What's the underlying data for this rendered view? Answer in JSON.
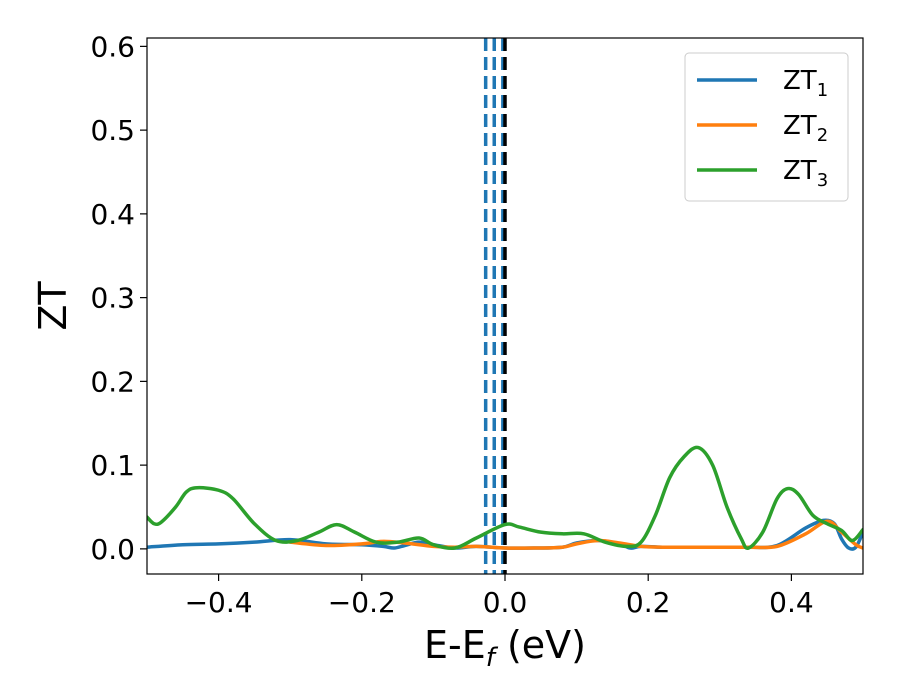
{
  "chart_data": {
    "type": "line",
    "xlabel": "E-E",
    "xlabel_sub": "f",
    "xlabel_unit": " (eV)",
    "ylabel": "ZT",
    "xlim": [
      -0.5,
      0.5
    ],
    "ylim": [
      -0.03,
      0.61
    ],
    "xticks": [
      -0.4,
      -0.2,
      0.0,
      0.2,
      0.4
    ],
    "xtick_labels": [
      "−0.4",
      "−0.2",
      "0.0",
      "0.2",
      "0.4"
    ],
    "yticks": [
      0.0,
      0.1,
      0.2,
      0.3,
      0.4,
      0.5,
      0.6
    ],
    "ytick_labels": [
      "0.0",
      "0.1",
      "0.2",
      "0.3",
      "0.4",
      "0.5",
      "0.6"
    ],
    "grid": false,
    "legend_position": "top-right",
    "vlines": [
      {
        "x": -0.027,
        "color": "#1f77b4",
        "style": "dashed"
      },
      {
        "x": -0.015,
        "color": "#1f77b4",
        "style": "dashed"
      },
      {
        "x": -0.003,
        "color": "#1f77b4",
        "style": "dashed"
      },
      {
        "x": 0.0,
        "color": "#000000",
        "style": "dashed"
      }
    ],
    "series": [
      {
        "name": "ZT",
        "name_sub": "1",
        "color": "#1f77b4",
        "x": [
          -0.5,
          -0.45,
          -0.4,
          -0.35,
          -0.3,
          -0.25,
          -0.2,
          -0.17,
          -0.155,
          -0.14,
          -0.12,
          -0.1,
          -0.07,
          -0.04,
          0.0,
          0.04,
          0.08,
          0.1,
          0.13,
          0.16,
          0.175,
          0.19,
          0.22,
          0.26,
          0.3,
          0.34,
          0.38,
          0.42,
          0.445,
          0.46,
          0.47,
          0.48,
          0.49,
          0.5
        ],
        "y": [
          0.002,
          0.005,
          0.006,
          0.008,
          0.011,
          0.006,
          0.005,
          0.003,
          0.001,
          0.004,
          0.008,
          0.005,
          0.001,
          0.003,
          0.001,
          0.001,
          0.002,
          0.007,
          0.01,
          0.006,
          0.001,
          0.003,
          0.002,
          0.002,
          0.002,
          0.002,
          0.004,
          0.025,
          0.034,
          0.03,
          0.012,
          0.001,
          0.002,
          0.02
        ]
      },
      {
        "name": "ZT",
        "name_sub": "2",
        "color": "#ff7f0e",
        "x": [
          -0.3,
          -0.25,
          -0.2,
          -0.17,
          -0.14,
          -0.1,
          -0.07,
          -0.04,
          0.0,
          0.04,
          0.08,
          0.1,
          0.13,
          0.16,
          0.19,
          0.22,
          0.26,
          0.3,
          0.34,
          0.38,
          0.42,
          0.45,
          0.47,
          0.49,
          0.5
        ],
        "y": [
          0.008,
          0.004,
          0.006,
          0.009,
          0.007,
          0.003,
          0.002,
          0.003,
          0.001,
          0.001,
          0.002,
          0.006,
          0.01,
          0.007,
          0.003,
          0.002,
          0.002,
          0.002,
          0.002,
          0.003,
          0.018,
          0.033,
          0.02,
          0.005,
          0.001
        ]
      },
      {
        "name": "ZT",
        "name_sub": "3",
        "color": "#2ca02c",
        "x": [
          -0.5,
          -0.49,
          -0.48,
          -0.46,
          -0.445,
          -0.43,
          -0.4,
          -0.38,
          -0.35,
          -0.32,
          -0.29,
          -0.26,
          -0.235,
          -0.21,
          -0.18,
          -0.15,
          -0.12,
          -0.1,
          -0.07,
          -0.04,
          0.0,
          0.02,
          0.05,
          0.08,
          0.11,
          0.14,
          0.17,
          0.19,
          0.21,
          0.23,
          0.25,
          0.27,
          0.29,
          0.31,
          0.33,
          0.34,
          0.36,
          0.38,
          0.395,
          0.41,
          0.43,
          0.45,
          0.47,
          0.485,
          0.5
        ],
        "y": [
          0.038,
          0.03,
          0.032,
          0.05,
          0.068,
          0.073,
          0.07,
          0.06,
          0.03,
          0.01,
          0.01,
          0.02,
          0.029,
          0.02,
          0.008,
          0.008,
          0.013,
          0.005,
          0.001,
          0.013,
          0.029,
          0.026,
          0.02,
          0.018,
          0.018,
          0.008,
          0.003,
          0.008,
          0.04,
          0.085,
          0.11,
          0.121,
          0.1,
          0.05,
          0.012,
          0.001,
          0.02,
          0.06,
          0.072,
          0.065,
          0.04,
          0.03,
          0.022,
          0.01,
          0.023
        ]
      }
    ]
  }
}
